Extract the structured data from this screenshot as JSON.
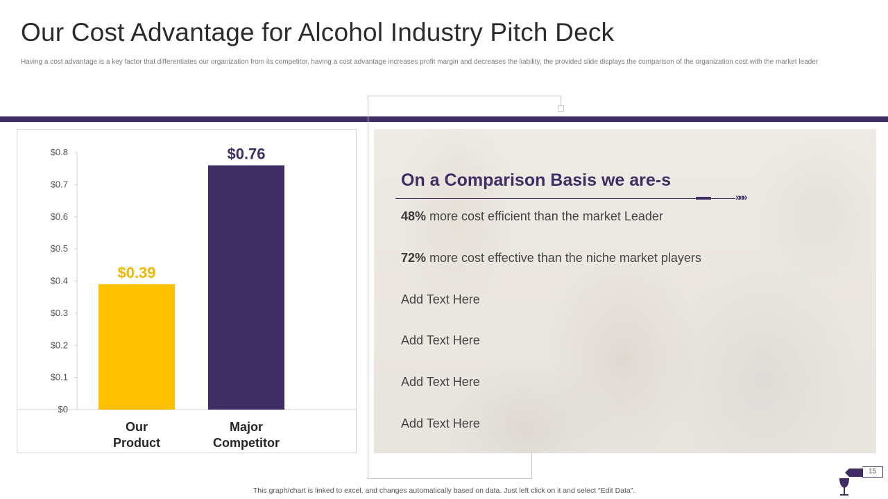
{
  "header": {
    "title": "Our Cost Advantage for Alcohol Industry Pitch Deck",
    "subtitle": "Having a cost advantage is a key factor that differentiates our organization from its competitor, having a cost advantage increases profit margin and decreases the liability, the provided slide displays the comparison of the organization cost with the market leader"
  },
  "colors": {
    "accent_purple": "#3f2e63",
    "accent_yellow": "#ffc000"
  },
  "chart_data": {
    "type": "bar",
    "categories": [
      "Our Product",
      "Major Competitor"
    ],
    "category_lines": [
      [
        "Our",
        "Product"
      ],
      [
        "Major",
        "Competitor"
      ]
    ],
    "values": [
      0.39,
      0.76
    ],
    "data_labels": [
      "$0.39",
      "$0.76"
    ],
    "bar_colors": [
      "#ffc000",
      "#3f2e63"
    ],
    "label_colors": [
      "#f2b800",
      "#3f2e63"
    ],
    "ylim": [
      0,
      0.8
    ],
    "yticks": [
      0,
      0.1,
      0.2,
      0.3,
      0.4,
      0.5,
      0.6,
      0.7,
      0.8
    ],
    "ytick_labels": [
      "$0",
      "$0.1",
      "$0.2",
      "$0.3",
      "$0.4",
      "$0.5",
      "$0.6",
      "$0.7",
      "$0.8"
    ],
    "title": "",
    "xlabel": "",
    "ylabel": "",
    "grid": false
  },
  "comparison": {
    "title": "On a Comparison Basis we are-s",
    "chevrons": "»»»",
    "points": [
      {
        "bold": "48%",
        "text": " more cost efficient than the market Leader"
      },
      {
        "bold": "72%",
        "text": " more cost effective than the niche market players"
      },
      {
        "bold": "",
        "text": "Add Text Here"
      },
      {
        "bold": "",
        "text": "Add Text Here"
      },
      {
        "bold": "",
        "text": "Add Text Here"
      },
      {
        "bold": "",
        "text": "Add Text Here"
      }
    ]
  },
  "footer": {
    "note": "This graph/chart is linked to excel,  and changes automatically based on data. Just left click on it and select “Edit Data”.",
    "page_number": "15",
    "icon": "wine-bottle-glass-icon"
  }
}
